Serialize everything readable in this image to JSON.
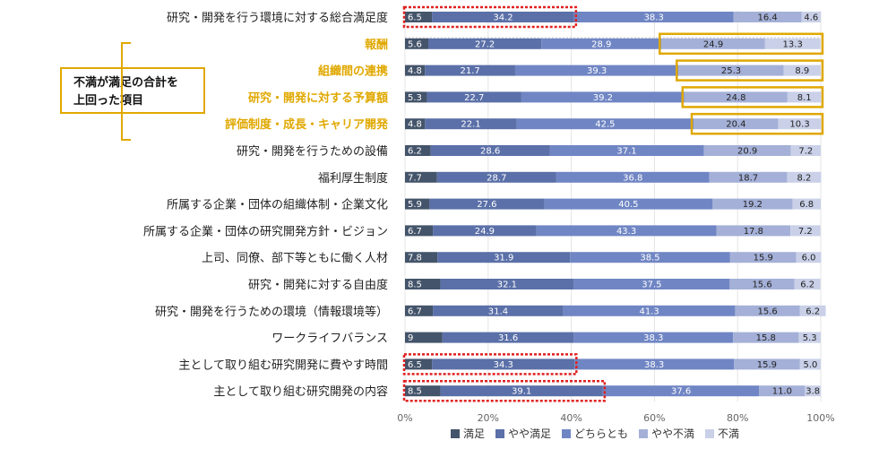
{
  "chart_data": {
    "type": "bar",
    "orientation": "horizontal",
    "stacked": true,
    "percent": true,
    "xlim": [
      0,
      100
    ],
    "x_ticks": [
      "0%",
      "20%",
      "40%",
      "60%",
      "80%",
      "100%"
    ],
    "categories": [
      "研究・開発を行う環境に対する総合満足度",
      "報酬",
      "組織間の連携",
      "研究・開発に対する予算額",
      "評価制度・成長・キャリア開発",
      "研究・開発を行うための設備",
      "福利厚生制度",
      "所属する企業・団体の組織体制・企業文化",
      "所属する企業・団体の研究開発方針・ビジョン",
      "上司、同僚、部下等ともに働く人材",
      "研究・開発に対する自由度",
      "研究・開発を行うための環境（情報環境等）",
      "ワークライフバランス",
      "主として取り組む研究開発に費やす時間",
      "主として取り組む研究開発の内容"
    ],
    "series": [
      {
        "name": "満足",
        "color": "#44546a",
        "values": [
          6.5,
          5.6,
          4.8,
          5.3,
          4.8,
          6.2,
          7.7,
          5.9,
          6.7,
          7.8,
          8.5,
          6.7,
          9,
          6.5,
          8.5
        ],
        "labels": [
          "6.5",
          "5.6",
          "4.8",
          "5.3",
          "4.8",
          "6.2",
          "7.7",
          "5.9",
          "6.7",
          "7.8",
          "8.5",
          "6.7",
          "9",
          "6.5",
          "8.5"
        ]
      },
      {
        "name": "やや満足",
        "color": "#5b70a8",
        "values": [
          34.2,
          27.2,
          21.7,
          22.7,
          22.1,
          28.6,
          28.7,
          27.6,
          24.9,
          31.9,
          32.1,
          31.4,
          31.6,
          34.3,
          39.1
        ],
        "labels": [
          "34.2",
          "27.2",
          "21.7",
          "22.7",
          "22.1",
          "28.6",
          "28.7",
          "27.6",
          "24.9",
          "31.9",
          "32.1",
          "31.4",
          "31.6",
          "34.3",
          "39.1"
        ]
      },
      {
        "name": "どちらとも",
        "color": "#7086c4",
        "values": [
          38.3,
          28.9,
          39.3,
          39.2,
          42.5,
          37.1,
          36.8,
          40.5,
          43.3,
          38.5,
          37.5,
          41.3,
          38.3,
          38.3,
          37.6
        ],
        "labels": [
          "38.3",
          "28.9",
          "39.3",
          "39.2",
          "42.5",
          "37.1",
          "36.8",
          "40.5",
          "43.3",
          "38.5",
          "37.5",
          "41.3",
          "38.3",
          "38.3",
          "37.6"
        ]
      },
      {
        "name": "やや不満",
        "color": "#a4b0d7",
        "values": [
          16.4,
          24.9,
          25.3,
          24.8,
          20.4,
          20.9,
          18.7,
          19.2,
          17.8,
          15.9,
          15.6,
          15.6,
          15.8,
          15.9,
          11.0
        ],
        "labels": [
          "16.4",
          "24.9",
          "25.3",
          "24.8",
          "20.4",
          "20.9",
          "18.7",
          "19.2",
          "17.8",
          "15.9",
          "15.6",
          "15.6",
          "15.8",
          "15.9",
          "11.0"
        ]
      },
      {
        "name": "不満",
        "color": "#c9d0e8",
        "values": [
          4.6,
          13.3,
          8.9,
          8.1,
          10.3,
          7.2,
          8.2,
          6.8,
          7.2,
          6.0,
          6.2,
          6.2,
          5.3,
          5.0,
          3.8
        ],
        "labels": [
          "4.6",
          "13.3",
          "8.9",
          "8.1",
          "10.3",
          "7.2",
          "8.2",
          "6.8",
          "7.2",
          "6.0",
          "6.2",
          "6.2",
          "5.3",
          "5.0",
          "3.8"
        ]
      }
    ],
    "highlight_rows": [
      1,
      2,
      3,
      4
    ],
    "highlight_color": "#e0a800",
    "dissatisfaction_boxed_rows": [
      1,
      2,
      3,
      4
    ],
    "satisfaction_boxed_rows": [
      0,
      13,
      14
    ],
    "box_colors": {
      "gold": "#e0a800",
      "red": "#e02020"
    },
    "callout": {
      "line1": "不満が満足の合計を",
      "line2": "上回った項目"
    },
    "legend_position": "bottom"
  }
}
